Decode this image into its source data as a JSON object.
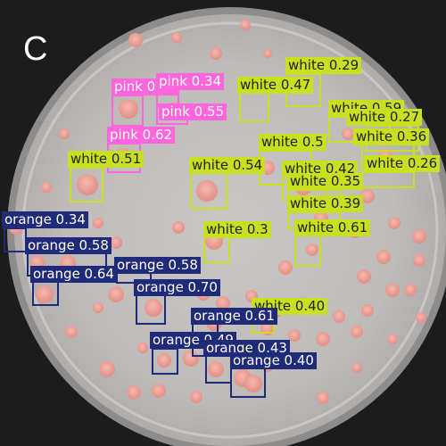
{
  "panel_letter": "C",
  "classes": {
    "pink": {
      "color": "#ff66dd",
      "text_color": "#ffffff"
    },
    "white": {
      "color": "#c8e020",
      "text_color": "#222222"
    },
    "orange": {
      "color": "#1f2a78",
      "text_color": "#ffffff"
    }
  },
  "detections": [
    {
      "label": "pink 0.36"
    },
    {
      "label": "pink 0.34"
    },
    {
      "label": "pink 0.55"
    },
    {
      "label": "pink 0.62"
    },
    {
      "label": "white 0.29"
    },
    {
      "label": "white 0.47"
    },
    {
      "label": "white 0.59"
    },
    {
      "label": "white 0.27"
    },
    {
      "label": "white 0.36"
    },
    {
      "label": "white 0.5"
    },
    {
      "label": "white 0.26"
    },
    {
      "label": "white 0.51"
    },
    {
      "label": "white 0.54"
    },
    {
      "label": "white 0.42"
    },
    {
      "label": "white 0.35"
    },
    {
      "label": "white 0.39"
    },
    {
      "label": "white 0.3"
    },
    {
      "label": "white 0.61"
    },
    {
      "label": "white 0.40"
    },
    {
      "label": "orange 0.34"
    },
    {
      "label": "orange 0.58"
    },
    {
      "label": "orange 0.58"
    },
    {
      "label": "orange 0.64"
    },
    {
      "label": "orange 0.70"
    },
    {
      "label": "orange 0.61"
    },
    {
      "label": "orange 0.49"
    },
    {
      "label": "orange 0.43"
    },
    {
      "label": "orange 0.40"
    }
  ]
}
